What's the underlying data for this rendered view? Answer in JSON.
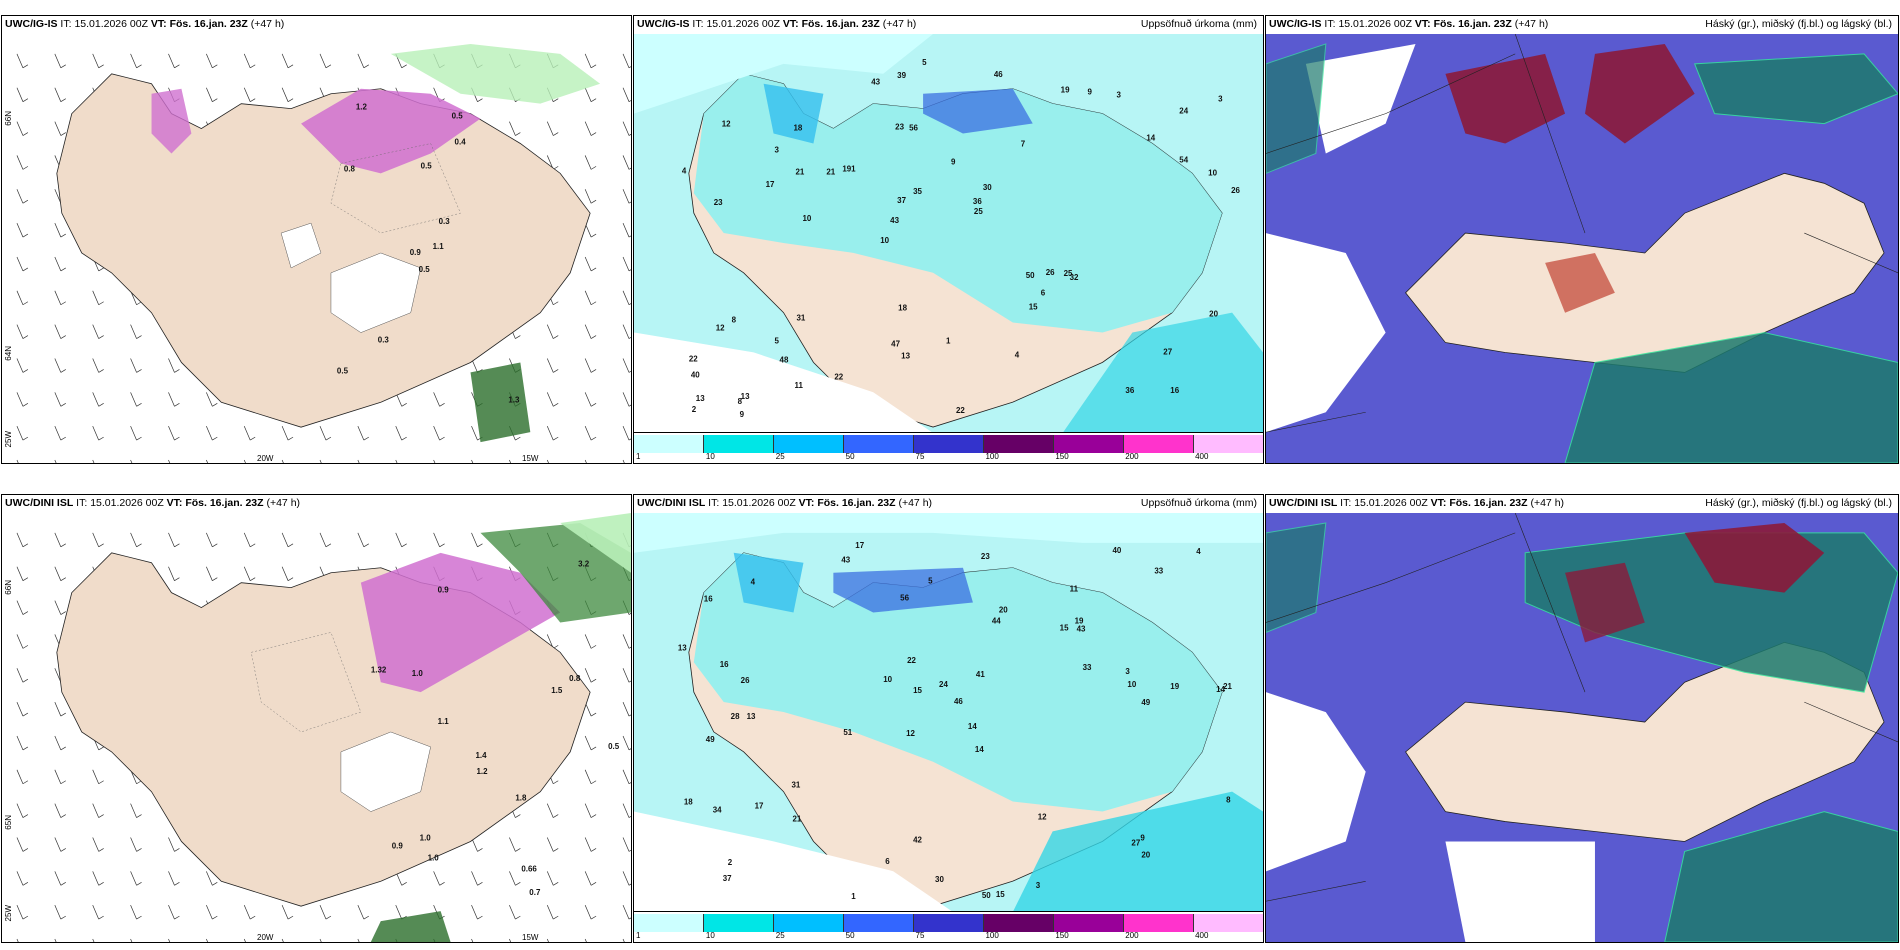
{
  "rows": [
    {
      "panels": [
        {
          "model": "UWC/IG-IS",
          "it_label": "IT:",
          "it_value": "15.01.2026 00Z",
          "vt_label": "VT:",
          "vt_value": "Fös. 16.jan. 23Z",
          "lead": "(+47 h)",
          "right_title": ""
        },
        {
          "model": "UWC/IG-IS",
          "it_label": "IT:",
          "it_value": "15.01.2026 00Z",
          "vt_label": "VT:",
          "vt_value": "Fös. 16.jan. 23Z",
          "lead": "(+47 h)",
          "right_title": "Uppsöfnuð úrkoma (mm)"
        },
        {
          "model": "UWC/IG-IS",
          "it_label": "IT:",
          "it_value": "15.01.2026 00Z",
          "vt_label": "VT:",
          "vt_value": "Fös. 16.jan. 23Z",
          "lead": "(+47 h)",
          "right_title": "Háský (gr.), miðský (fj.bl.) og lágský (bl.)"
        }
      ]
    },
    {
      "panels": [
        {
          "model": "UWC/DINI ISL",
          "it_label": "IT:",
          "it_value": "15.01.2026 00Z",
          "vt_label": "VT:",
          "vt_value": "Fös. 16.jan. 23Z",
          "lead": "(+47 h)",
          "right_title": ""
        },
        {
          "model": "UWC/DINI ISL",
          "it_label": "IT:",
          "it_value": "15.01.2026 00Z",
          "vt_label": "VT:",
          "vt_value": "Fös. 16.jan. 23Z",
          "lead": "(+47 h)",
          "right_title": "Uppsöfnuð úrkoma (mm)"
        },
        {
          "model": "UWC/DINI ISL",
          "it_label": "IT:",
          "it_value": "15.01.2026 00Z",
          "vt_label": "VT:",
          "vt_value": "Fös. 16.jan. 23Z",
          "lead": "(+47 h)",
          "right_title": "Háský (gr.), miðský (fj.bl.) og lágský (bl.)"
        }
      ]
    }
  ],
  "axis_labels": {
    "lat_66": "66N",
    "lat_64": "64N",
    "lat_65": "65N",
    "lon_20": "20W",
    "lon_15": "15W",
    "lon_25": "25W"
  },
  "legend": {
    "ticks": [
      "1",
      "10",
      "25",
      "50",
      "75",
      "100",
      "150",
      "200",
      "400"
    ],
    "colors": [
      "#ccffff",
      "#00e6e6",
      "#00bfff",
      "#3366ff",
      "#3333cc",
      "#660066",
      "#990099",
      "#ff33cc",
      "#ffbbff"
    ]
  },
  "colors": {
    "land": "#f5e3d3",
    "precip_light": "#b7f5f5",
    "precip_mid": "#33d6e6",
    "precip_high": "#3b6fe0",
    "snow_pink": "#e066e0",
    "green_rain": "#90e090",
    "cloud_high": "#8b1a3a",
    "cloud_mid": "#1d7a6e",
    "cloud_low": "#5a5ad0"
  },
  "accumulated_labels": {
    "top": [
      "16",
      "23",
      "24",
      "10",
      "7",
      "13",
      "23",
      "9",
      "8",
      "191",
      "40",
      "48",
      "56",
      "30",
      "32",
      "12",
      "39",
      "26",
      "50",
      "54",
      "43",
      "47",
      "37",
      "18",
      "19",
      "31",
      "36",
      "27",
      "25",
      "22",
      "21",
      "17",
      "15",
      "11",
      "10",
      "36",
      "13",
      "13",
      "25",
      "12",
      "14",
      "3",
      "6",
      "4",
      "5",
      "9",
      "2",
      "1",
      "3",
      "5",
      "10",
      "4",
      "3",
      "9",
      "8",
      "46",
      "43",
      "35",
      "20",
      "18",
      "22",
      "26",
      "21",
      "22"
    ],
    "bottom": [
      "17",
      "11",
      "14",
      "12",
      "14",
      "13",
      "16",
      "15",
      "49",
      "44",
      "46",
      "37",
      "43",
      "51",
      "50",
      "15",
      "42",
      "40",
      "33",
      "31",
      "26",
      "28",
      "21",
      "19",
      "18",
      "16",
      "15",
      "10",
      "9",
      "34",
      "27",
      "20",
      "17",
      "10",
      "12",
      "8",
      "3",
      "6",
      "4",
      "5",
      "2",
      "1",
      "3",
      "4",
      "30",
      "43",
      "20",
      "19",
      "13",
      "14",
      "56",
      "49",
      "41",
      "33",
      "23",
      "21",
      "22",
      "24"
    ]
  },
  "snow_labels": {
    "top": [
      "0.5",
      "0.8",
      "0.9",
      "0.5",
      "0.3",
      "0.3",
      "0.5",
      "0.5",
      "0.4",
      "1.1",
      "1.2",
      "1.3"
    ],
    "bottom": [
      "0.7",
      "0.9",
      "1.0",
      "1.0",
      "0.8",
      "0.66",
      "0.5",
      "1.1",
      "1.2",
      "1.0",
      "0.9",
      "1.32",
      "1.4",
      "1.8",
      "1.5",
      "3.2"
    ]
  }
}
